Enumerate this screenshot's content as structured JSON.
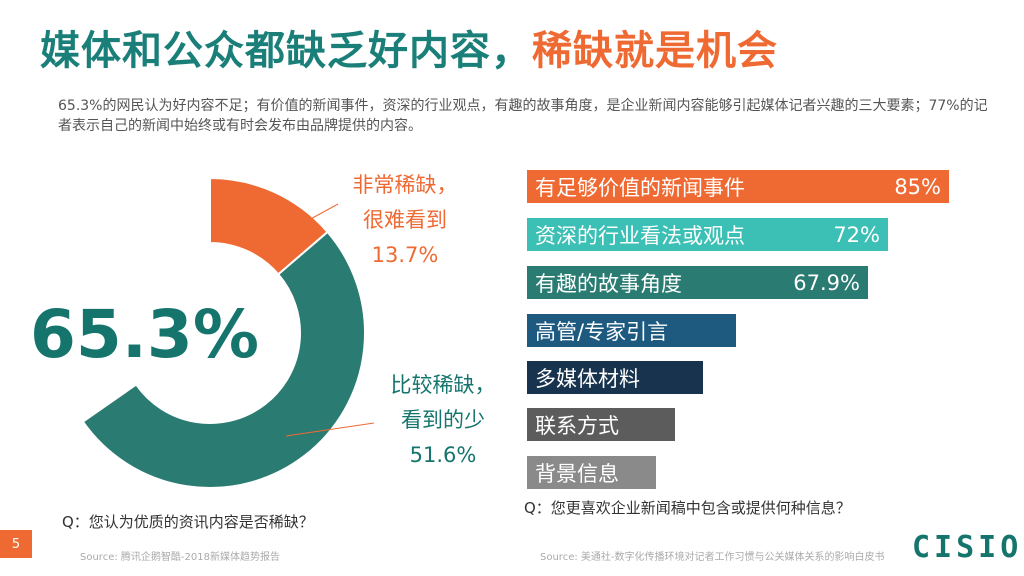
{
  "title": {
    "main": "媒体和公众都缺乏好内容，",
    "highlight": "稀缺就是机会"
  },
  "subtitle": "65.3%的网民认为好内容不足；有价值的新闻事件，资深的行业观点，有趣的故事角度，是企业新闻内容能够引起媒体记者兴趣的三大要素；77%的记者表示自己的新闻中始终或有时会发布由品牌提供的内容。",
  "donut": {
    "big_label": "65.3%",
    "segments": [
      {
        "label_line1": "非常稀缺，",
        "label_line2": "很难看到",
        "value_label": "13.7%",
        "value": 13.7,
        "color": "#ef6a33"
      },
      {
        "label_line1": "比较稀缺，",
        "label_line2": "看到的少",
        "value_label": "51.6%",
        "value": 51.6,
        "color": "#2a7b72"
      }
    ],
    "question": "Q：您认为优质的资讯内容是否稀缺？",
    "source": "Source: 腾讯企鹅智酷-2018新媒体趋势报告"
  },
  "chart_data": {
    "type": "bar",
    "categories": [
      "有足够价值的新闻事件",
      "资深的行业看法或观点",
      "有趣的故事角度",
      "高管/专家引言",
      "多媒体材料",
      "联系方式",
      "背景信息"
    ],
    "value_labels": [
      "85%",
      "72%",
      "67.9%",
      "",
      "",
      "",
      ""
    ],
    "values": [
      85,
      72,
      67.9,
      40,
      33,
      27,
      23
    ],
    "colors": [
      "#ef6a33",
      "#3cbfb4",
      "#2a7b72",
      "#1e5a80",
      "#17334d",
      "#5c5c5c",
      "#8a8a8a"
    ]
  },
  "bar_question": "Q：您更喜欢企业新闻稿中包含或提供何种信息？",
  "bar_source": "Source: 美通社-数字化传播环境对记者工作习惯与公关媒体关系的影响白皮书",
  "page_number": "5",
  "brand": "CISION"
}
